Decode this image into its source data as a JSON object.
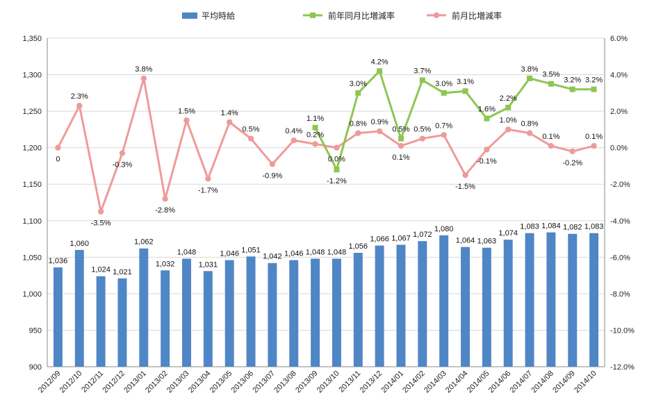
{
  "chart_data": {
    "type": "bar",
    "categories": [
      "2012/09",
      "2012/10",
      "2012/11",
      "2012/12",
      "2013/01",
      "2013/02",
      "2013/03",
      "2013/04",
      "2013/05",
      "2013/06",
      "2013/07",
      "2013/08",
      "2013/09",
      "2013/10",
      "2013/11",
      "2013/12",
      "2014/01",
      "2014/02",
      "2014/03",
      "2014/04",
      "2014/05",
      "2014/06",
      "2014/07",
      "2014/08",
      "2014/09",
      "2014/10"
    ],
    "left_axis": {
      "ylim": [
        900,
        1350
      ],
      "ticks": [
        "900",
        "950",
        "1,000",
        "1,050",
        "1,100",
        "1,150",
        "1,200",
        "1,250",
        "1,300",
        "1,350"
      ]
    },
    "right_axis": {
      "ylim": [
        -12.0,
        6.0
      ],
      "ticks": [
        "-12.0%",
        "-10.0%",
        "-8.0%",
        "-6.0%",
        "-4.0%",
        "-2.0%",
        "0.0%",
        "2.0%",
        "4.0%",
        "6.0%"
      ]
    },
    "grid": true,
    "legend_position": "top",
    "series": [
      {
        "name": "平均時給",
        "kind": "bar",
        "axis": "left",
        "color": "#4f86c6",
        "values": [
          1036,
          1060,
          1024,
          1021,
          1062,
          1032,
          1048,
          1031,
          1046,
          1051,
          1042,
          1046,
          1048,
          1048,
          1056,
          1066,
          1067,
          1072,
          1080,
          1064,
          1063,
          1074,
          1083,
          1084,
          1082,
          1083
        ],
        "labels": [
          "1,036",
          "1,060",
          "1,024",
          "1,021",
          "1,062",
          "1,032",
          "1,048",
          "1,031",
          "1,046",
          "1,051",
          "1,042",
          "1,046",
          "1,048",
          "1,048",
          "1,056",
          "1,066",
          "1,067",
          "1,072",
          "1,080",
          "1,064",
          "1,063",
          "1,074",
          "1,083",
          "1,084",
          "1,082",
          "1,083"
        ]
      },
      {
        "name": "前年同月比増減率",
        "kind": "line",
        "axis": "right",
        "color": "#8dc652",
        "marker": "square",
        "values": [
          null,
          null,
          null,
          null,
          null,
          null,
          null,
          null,
          null,
          null,
          null,
          null,
          1.1,
          -1.2,
          3.0,
          4.2,
          0.5,
          3.7,
          3.0,
          3.1,
          1.6,
          2.2,
          3.8,
          3.5,
          3.2,
          3.2
        ],
        "labels": [
          null,
          null,
          null,
          null,
          null,
          null,
          null,
          null,
          null,
          null,
          null,
          null,
          "1.1%",
          "-1.2%",
          "3.0%",
          "4.2%",
          "0.5%",
          "3.7%",
          "3.0%",
          "3.1%",
          "1.6%",
          "2.2%",
          "3.8%",
          "3.5%",
          "3.2%",
          "3.2%"
        ]
      },
      {
        "name": "前月比増減率",
        "kind": "line",
        "axis": "right",
        "color": "#ef9a9a",
        "marker": "circle",
        "values": [
          0,
          2.3,
          -3.5,
          -0.3,
          3.8,
          -2.8,
          1.5,
          -1.7,
          1.4,
          0.5,
          -0.9,
          0.4,
          0.2,
          0.0,
          0.8,
          0.9,
          0.1,
          0.5,
          0.7,
          -1.5,
          -0.1,
          1.0,
          0.8,
          0.1,
          -0.2,
          0.1
        ],
        "labels": [
          "0",
          "2.3%",
          "-3.5%",
          "-0.3%",
          "3.8%",
          "-2.8%",
          "1.5%",
          "-1.7%",
          "1.4%",
          "0.5%",
          "-0.9%",
          "0.4%",
          "0.2%",
          "0.0%",
          "0.8%",
          "0.9%",
          "0.1%",
          "0.5%",
          "0.7%",
          "-1.5%",
          "-0.1%",
          "1.0%",
          "0.8%",
          "0.1%",
          "-0.2%",
          "0.1%"
        ]
      }
    ]
  }
}
